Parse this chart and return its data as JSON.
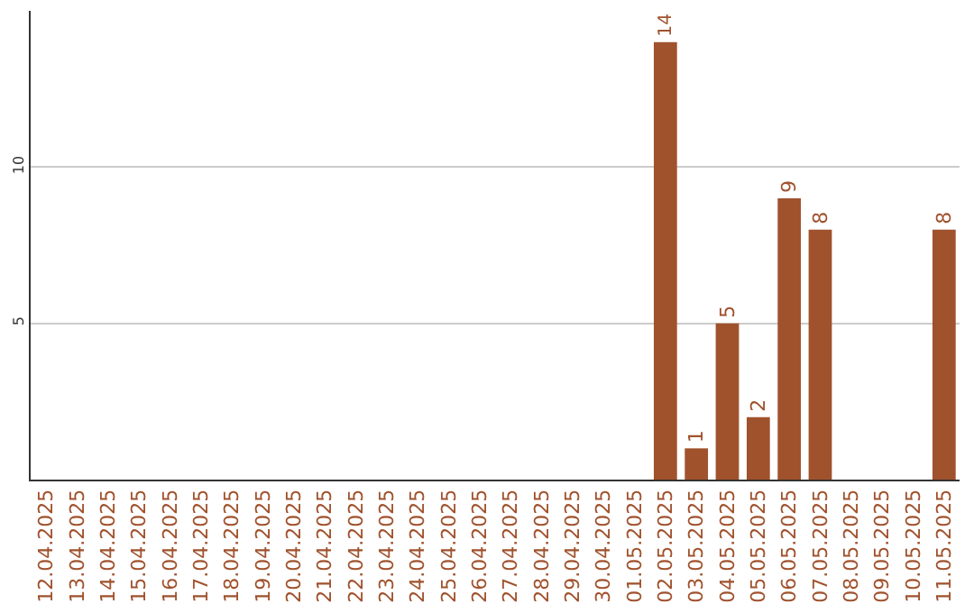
{
  "chart_data": {
    "type": "bar",
    "categories": [
      "12.04.2025",
      "13.04.2025",
      "14.04.2025",
      "15.04.2025",
      "16.04.2025",
      "17.04.2025",
      "18.04.2025",
      "19.04.2025",
      "20.04.2025",
      "21.04.2025",
      "22.04.2025",
      "23.04.2025",
      "24.04.2025",
      "25.04.2025",
      "26.04.2025",
      "27.04.2025",
      "28.04.2025",
      "29.04.2025",
      "30.04.2025",
      "01.05.2025",
      "02.05.2025",
      "03.05.2025",
      "04.05.2025",
      "05.05.2025",
      "06.05.2025",
      "07.05.2025",
      "08.05.2025",
      "09.05.2025",
      "10.05.2025",
      "11.05.2025"
    ],
    "values": [
      null,
      null,
      null,
      null,
      null,
      null,
      null,
      null,
      null,
      null,
      null,
      null,
      null,
      null,
      null,
      null,
      null,
      null,
      null,
      null,
      14,
      1,
      5,
      2,
      9,
      8,
      null,
      null,
      null,
      8
    ],
    "value_labels": [
      null,
      null,
      null,
      null,
      null,
      null,
      null,
      null,
      null,
      null,
      null,
      null,
      null,
      null,
      null,
      null,
      null,
      null,
      null,
      null,
      "14",
      "1",
      "5",
      "2",
      "9",
      "8",
      null,
      null,
      null,
      "8"
    ],
    "color": "#a0522d",
    "ylim": [
      0,
      15
    ],
    "yticks": [
      5,
      10
    ],
    "grid": "y",
    "legend": false
  }
}
